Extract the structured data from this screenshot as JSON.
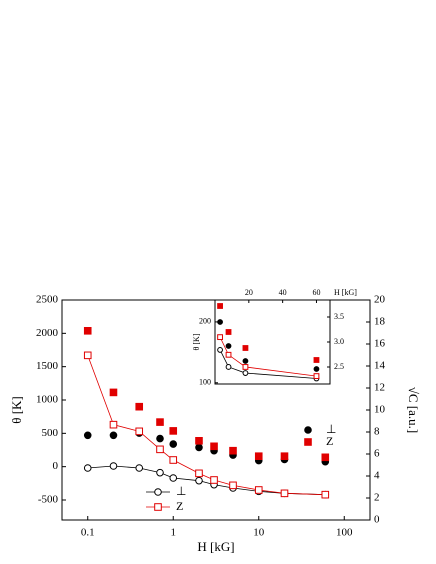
{
  "chart_data": [
    {
      "type": "line",
      "xscale": "log",
      "x": [
        0.1,
        0.2,
        0.4,
        0.7,
        1,
        2,
        3,
        5,
        10,
        20,
        60
      ],
      "xlim": [
        0.05,
        200
      ],
      "xticks": [
        0.1,
        1,
        10,
        100
      ],
      "xlabel": "H [kG]",
      "ylim": [
        -800,
        2500
      ],
      "yticks": [
        -500,
        0,
        500,
        1000,
        1500,
        2000,
        2500
      ],
      "ylabel": "θ [K]",
      "y2lim": [
        0,
        20
      ],
      "y2ticks": [
        0,
        2,
        4,
        6,
        8,
        10,
        12,
        14,
        16,
        18,
        20
      ],
      "y2label": "√C [a.u.]",
      "series": [
        {
          "name": "⊥",
          "color": "#000000",
          "marker": "circle",
          "filled": true,
          "line": false,
          "axis": "y2",
          "values": [
            7.7,
            7.7,
            7.9,
            7.4,
            6.9,
            6.6,
            6.3,
            5.9,
            5.4,
            5.5,
            5.3
          ]
        },
        {
          "name": "Z",
          "color": "#e00000",
          "marker": "square",
          "filled": true,
          "line": false,
          "axis": "y2",
          "values": [
            17.2,
            11.6,
            10.3,
            8.9,
            8.1,
            7.2,
            6.7,
            6.3,
            5.8,
            5.8,
            5.7
          ]
        },
        {
          "name": "⊥",
          "color": "#000000",
          "marker": "circle",
          "filled": false,
          "line": true,
          "values": [
            -20,
            10,
            -20,
            -90,
            -170,
            -210,
            -270,
            -320,
            -370,
            -400,
            -420
          ]
        },
        {
          "name": "Z",
          "color": "#e00000",
          "marker": "square",
          "filled": false,
          "line": true,
          "values": [
            1670,
            630,
            530,
            260,
            100,
            -100,
            -200,
            -280,
            -350,
            -400,
            -420
          ]
        }
      ]
    },
    {
      "type": "line",
      "xscale": "linear",
      "xaxis_position": "top",
      "x": [
        3,
        8,
        18,
        60
      ],
      "xlim": [
        0,
        68
      ],
      "xticks": [
        20,
        40,
        60
      ],
      "xlabel": "H [kG]",
      "ylim": [
        98,
        236
      ],
      "yticks": [
        100,
        200
      ],
      "ylabel": "θ [K]",
      "y2lim": [
        2.16,
        3.84
      ],
      "y2ticks": [
        2.5,
        {
          "value": 3,
          "label": "3.0"
        },
        3.5
      ],
      "series": [
        {
          "color": "#000000",
          "marker": "circle",
          "filled": true,
          "line": false,
          "axis": "y2",
          "values": [
            3.4,
            2.92,
            2.62,
            2.46
          ]
        },
        {
          "color": "#e00000",
          "marker": "square",
          "filled": true,
          "line": false,
          "axis": "y2",
          "values": [
            3.72,
            3.2,
            2.88,
            2.64
          ]
        },
        {
          "color": "#000000",
          "marker": "circle",
          "filled": false,
          "line": true,
          "values": [
            154,
            126,
            116,
            107
          ]
        },
        {
          "color": "#e00000",
          "marker": "square",
          "filled": false,
          "line": true,
          "values": [
            175,
            146,
            126,
            111
          ]
        }
      ]
    }
  ]
}
